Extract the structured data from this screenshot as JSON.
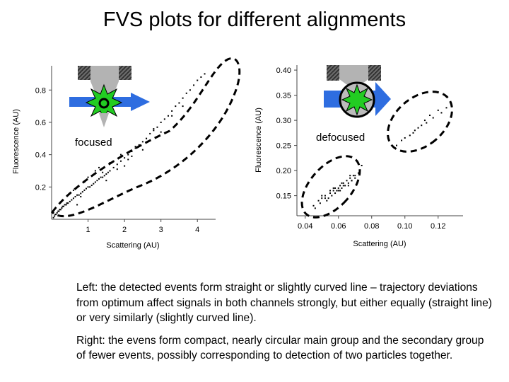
{
  "slide": {
    "title": "FVS plots for different alignments",
    "caption_left": "Left: the detected events form straight or slightly curved line – trajectory deviations from optimum affect signals in both channels strongly, but either equally (straight line) or very similarly (slightly curved line).",
    "caption_right": "Right: the evens form compact, nearly circular main group and the secondary group of fewer events, possibly corresponding to detection of two particles together."
  },
  "colors": {
    "arrow_blue": "#2e6de0",
    "flash_green": "#22cc22",
    "nozzle_gray": "#b3b3b3",
    "hatch_dark": "#333333",
    "ellipse_stroke": "#000000"
  },
  "chart_data": [
    {
      "type": "scatter",
      "label": "focused",
      "xlabel": "Scattering (AU)",
      "ylabel": "Fluorescence (AU)",
      "x_ticks": [
        1,
        2,
        3,
        4
      ],
      "y_ticks": [
        0.2,
        0.4,
        0.6,
        0.8
      ],
      "xlim": [
        0,
        4.5
      ],
      "ylim": [
        0,
        0.95
      ],
      "grid": false,
      "series": [
        {
          "x": [
            0.05,
            0.08,
            0.1,
            0.12,
            0.15,
            0.18,
            0.2,
            0.22,
            0.25,
            0.28,
            0.3,
            0.33,
            0.36,
            0.4,
            0.42,
            0.45,
            0.5,
            0.55,
            0.6,
            0.65,
            0.7,
            0.75,
            0.8,
            0.85,
            0.9,
            0.95,
            1.0,
            1.05,
            1.1,
            1.15,
            1.2,
            1.25,
            1.3,
            1.35,
            1.4,
            1.45,
            1.5,
            1.55,
            1.6,
            1.7,
            1.8,
            1.9,
            2.0,
            2.1,
            2.2,
            2.3,
            2.4,
            2.5,
            2.6,
            2.7,
            2.8,
            2.9,
            3.0,
            3.1,
            3.2,
            3.3,
            3.4,
            3.5,
            3.6,
            3.7,
            3.8,
            3.9,
            4.0,
            4.1,
            1.0,
            1.2,
            1.4,
            1.6,
            1.8,
            2.0,
            2.2,
            2.5,
            0.6,
            0.8,
            0.7,
            0.9,
            1.1,
            1.3,
            1.5,
            1.7,
            1.9,
            2.1,
            2.3,
            2.6,
            2.8,
            3.0,
            3.3,
            3.6,
            4.2
          ],
          "y": [
            0.01,
            0.02,
            0.03,
            0.03,
            0.04,
            0.05,
            0.05,
            0.06,
            0.06,
            0.07,
            0.08,
            0.08,
            0.09,
            0.09,
            0.1,
            0.1,
            0.11,
            0.12,
            0.13,
            0.14,
            0.15,
            0.15,
            0.16,
            0.17,
            0.18,
            0.19,
            0.2,
            0.2,
            0.21,
            0.22,
            0.23,
            0.24,
            0.25,
            0.26,
            0.26,
            0.27,
            0.28,
            0.29,
            0.3,
            0.32,
            0.34,
            0.36,
            0.38,
            0.4,
            0.42,
            0.44,
            0.46,
            0.48,
            0.5,
            0.53,
            0.55,
            0.57,
            0.6,
            0.62,
            0.64,
            0.67,
            0.7,
            0.72,
            0.75,
            0.78,
            0.8,
            0.83,
            0.86,
            0.88,
            0.26,
            0.3,
            0.29,
            0.35,
            0.31,
            0.33,
            0.39,
            0.43,
            0.18,
            0.14,
            0.09,
            0.23,
            0.27,
            0.32,
            0.24,
            0.36,
            0.4,
            0.37,
            0.45,
            0.5,
            0.56,
            0.54,
            0.64,
            0.7,
            0.9
          ]
        }
      ]
    },
    {
      "type": "scatter",
      "label": "defocused",
      "xlabel": "Scattering (AU)",
      "ylabel": "Fluorescence (AU)",
      "x_ticks": [
        0.04,
        0.06,
        0.08,
        0.1,
        0.12
      ],
      "y_ticks": [
        0.15,
        0.2,
        0.25,
        0.3,
        0.35,
        0.4
      ],
      "xlim": [
        0.035,
        0.135
      ],
      "ylim": [
        0.11,
        0.41
      ],
      "grid": false,
      "series": [
        {
          "x": [
            0.045,
            0.048,
            0.05,
            0.052,
            0.053,
            0.055,
            0.056,
            0.057,
            0.058,
            0.059,
            0.06,
            0.06,
            0.061,
            0.062,
            0.063,
            0.064,
            0.065,
            0.066,
            0.067,
            0.068,
            0.069,
            0.07,
            0.05,
            0.054,
            0.058,
            0.062,
            0.066,
            0.07,
            0.049,
            0.055,
            0.061,
            0.067,
            0.073,
            0.052,
            0.057,
            0.063,
            0.068,
            0.072,
            0.046,
            0.074
          ],
          "y": [
            0.13,
            0.14,
            0.145,
            0.15,
            0.14,
            0.155,
            0.15,
            0.16,
            0.155,
            0.16,
            0.165,
            0.16,
            0.17,
            0.165,
            0.175,
            0.17,
            0.18,
            0.175,
            0.185,
            0.18,
            0.19,
            0.185,
            0.15,
            0.145,
            0.165,
            0.175,
            0.17,
            0.19,
            0.135,
            0.16,
            0.16,
            0.19,
            0.2,
            0.145,
            0.165,
            0.17,
            0.18,
            0.195,
            0.125,
            0.21
          ]
        },
        {
          "x": [
            0.095,
            0.1,
            0.103,
            0.106,
            0.108,
            0.11,
            0.112,
            0.113,
            0.115,
            0.117,
            0.12,
            0.122,
            0.125,
            0.098,
            0.105
          ],
          "y": [
            0.25,
            0.265,
            0.27,
            0.28,
            0.285,
            0.29,
            0.3,
            0.295,
            0.31,
            0.305,
            0.32,
            0.315,
            0.325,
            0.26,
            0.275
          ]
        }
      ]
    }
  ]
}
